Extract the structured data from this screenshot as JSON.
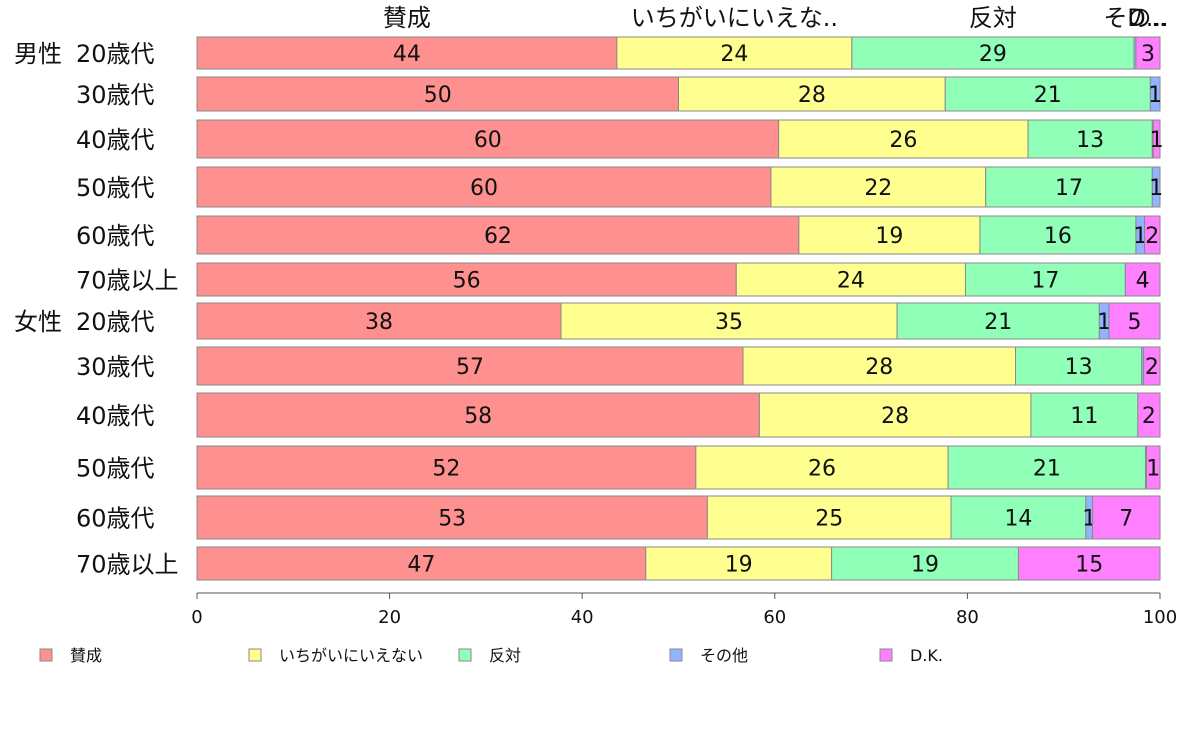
{
  "chart_data": {
    "type": "bar",
    "orientation": "horizontal",
    "stacked": true,
    "percent": true,
    "groups": [
      "男性",
      "女性"
    ],
    "categories": [
      "20歳代",
      "30歳代",
      "40歳代",
      "50歳代",
      "60歳代",
      "70歳以上",
      "20歳代",
      "30歳代",
      "40歳代",
      "50歳代",
      "60歳代",
      "70歳以上"
    ],
    "group_of_category": [
      0,
      0,
      0,
      0,
      0,
      0,
      1,
      1,
      1,
      1,
      1,
      1
    ],
    "top_labels": [
      "賛成",
      "いちがいにいえな..",
      "反対",
      "その..",
      "D..."
    ],
    "series": [
      {
        "name": "賛成",
        "color": "#ff9090",
        "values": [
          43.6,
          50.0,
          60.4,
          59.6,
          62.5,
          56.0,
          37.8,
          56.7,
          58.4,
          51.8,
          53.0,
          46.6
        ],
        "labels": [
          "44",
          "50",
          "60",
          "60",
          "62",
          "56",
          "38",
          "57",
          "58",
          "52",
          "53",
          "47"
        ]
      },
      {
        "name": "いちがいにいえない",
        "color": "#ffff90",
        "values": [
          24.4,
          27.7,
          25.9,
          22.3,
          18.8,
          23.8,
          34.9,
          28.3,
          28.2,
          26.2,
          25.3,
          19.3
        ],
        "labels": [
          "24",
          "28",
          "26",
          "22",
          "19",
          "24",
          "35",
          "28",
          "28",
          "26",
          "25",
          "19"
        ]
      },
      {
        "name": "反対",
        "color": "#90ffb8",
        "values": [
          29.3,
          21.3,
          12.9,
          17.3,
          16.2,
          16.6,
          21.0,
          13.1,
          11.1,
          20.5,
          14.0,
          19.4
        ],
        "labels": [
          "29",
          "21",
          "13",
          "17",
          "16",
          "17",
          "21",
          "13",
          "11",
          "21",
          "14",
          "19"
        ]
      },
      {
        "name": "その他",
        "color": "#90b4ff",
        "values": [
          0.2,
          1.0,
          0.1,
          0.8,
          0.9,
          0.0,
          1.0,
          0.2,
          0.0,
          0.1,
          0.7,
          0.0
        ],
        "labels": [
          "",
          "1",
          "",
          "1",
          "1",
          "",
          "1",
          "",
          "",
          "",
          "1",
          ""
        ]
      },
      {
        "name": "D.K.",
        "color": "#ff80ff",
        "values": [
          2.5,
          0.0,
          0.7,
          0.0,
          1.6,
          3.6,
          5.3,
          1.7,
          2.3,
          1.4,
          7.0,
          14.7
        ],
        "labels": [
          "3",
          "",
          "1",
          "",
          "2",
          "4",
          "5",
          "2",
          "2",
          "1",
          "7",
          "15"
        ]
      }
    ],
    "xlim": [
      0,
      100
    ],
    "xticks": [
      0,
      20,
      40,
      60,
      80,
      100
    ],
    "legend_position": "bottom",
    "grid": false
  }
}
